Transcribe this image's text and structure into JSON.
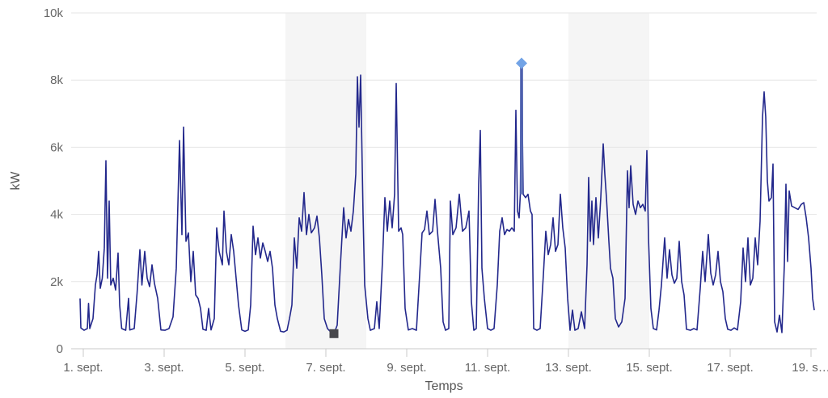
{
  "chart_data": {
    "type": "line",
    "title": "",
    "xlabel": "Temps",
    "ylabel": "kW",
    "x_unit": "September date (day + fraction of day)",
    "y_unit": "kW",
    "xlim": [
      0.7,
      19.14
    ],
    "ylim": [
      0,
      10000
    ],
    "grid": true,
    "legend": false,
    "x_ticks": [
      {
        "day": 1,
        "label": "1. sept."
      },
      {
        "day": 3,
        "label": "3. sept."
      },
      {
        "day": 5,
        "label": "5. sept."
      },
      {
        "day": 7,
        "label": "7. sept."
      },
      {
        "day": 9,
        "label": "9. sept."
      },
      {
        "day": 11,
        "label": "11. sept."
      },
      {
        "day": 13,
        "label": "13. sept."
      },
      {
        "day": 15,
        "label": "15. sept."
      },
      {
        "day": 17,
        "label": "17. sept."
      },
      {
        "day": 19,
        "label": "19. s…"
      }
    ],
    "y_ticks": [
      {
        "value": 0,
        "label": "0"
      },
      {
        "value": 2000,
        "label": "2k"
      },
      {
        "value": 4000,
        "label": "4k"
      },
      {
        "value": 6000,
        "label": "6k"
      },
      {
        "value": 8000,
        "label": "8k"
      },
      {
        "value": 10000,
        "label": "10k"
      }
    ],
    "plot_bands": [
      {
        "from": 6,
        "to": 8
      },
      {
        "from": 13,
        "to": 15
      }
    ],
    "colors": {
      "line": "#23288c",
      "band": "#f5f5f5",
      "grid": "#e6e6e6",
      "axis": "#c9c9c9",
      "highlight": "#5569b3"
    },
    "max_point": {
      "x": 11.84,
      "y": 8500,
      "marker": "diamond",
      "color": "#72a3e6",
      "highlight_to": 4600
    },
    "min_point": {
      "x": 7.2,
      "y": 450,
      "marker": "square",
      "color": "#47474b"
    },
    "series": [
      {
        "color": "#23288c",
        "points": [
          [
            0.92,
            1500
          ],
          [
            0.94,
            620
          ],
          [
            1.02,
            550
          ],
          [
            1.1,
            600
          ],
          [
            1.13,
            1350
          ],
          [
            1.16,
            600
          ],
          [
            1.24,
            900
          ],
          [
            1.3,
            1900
          ],
          [
            1.34,
            2200
          ],
          [
            1.38,
            2900
          ],
          [
            1.42,
            1800
          ],
          [
            1.47,
            2100
          ],
          [
            1.52,
            3000
          ],
          [
            1.56,
            5600
          ],
          [
            1.6,
            2100
          ],
          [
            1.64,
            4400
          ],
          [
            1.68,
            1900
          ],
          [
            1.74,
            2100
          ],
          [
            1.8,
            1750
          ],
          [
            1.86,
            2850
          ],
          [
            1.9,
            1300
          ],
          [
            1.95,
            600
          ],
          [
            2.05,
            550
          ],
          [
            2.12,
            1500
          ],
          [
            2.15,
            560
          ],
          [
            2.26,
            600
          ],
          [
            2.33,
            1650
          ],
          [
            2.4,
            2950
          ],
          [
            2.45,
            1900
          ],
          [
            2.52,
            2900
          ],
          [
            2.58,
            2100
          ],
          [
            2.64,
            1850
          ],
          [
            2.7,
            2500
          ],
          [
            2.76,
            1950
          ],
          [
            2.84,
            1500
          ],
          [
            2.92,
            560
          ],
          [
            3.02,
            550
          ],
          [
            3.12,
            600
          ],
          [
            3.22,
            950
          ],
          [
            3.3,
            2400
          ],
          [
            3.38,
            6200
          ],
          [
            3.44,
            3400
          ],
          [
            3.48,
            6600
          ],
          [
            3.54,
            3200
          ],
          [
            3.6,
            3450
          ],
          [
            3.66,
            2000
          ],
          [
            3.72,
            2900
          ],
          [
            3.78,
            1600
          ],
          [
            3.84,
            1500
          ],
          [
            3.9,
            1200
          ],
          [
            3.96,
            580
          ],
          [
            4.04,
            550
          ],
          [
            4.1,
            1200
          ],
          [
            4.16,
            560
          ],
          [
            4.24,
            900
          ],
          [
            4.3,
            3600
          ],
          [
            4.36,
            2900
          ],
          [
            4.44,
            2500
          ],
          [
            4.48,
            4100
          ],
          [
            4.54,
            2900
          ],
          [
            4.6,
            2500
          ],
          [
            4.66,
            3400
          ],
          [
            4.72,
            2900
          ],
          [
            4.78,
            2100
          ],
          [
            4.84,
            1300
          ],
          [
            4.92,
            560
          ],
          [
            5.0,
            520
          ],
          [
            5.08,
            560
          ],
          [
            5.14,
            1300
          ],
          [
            5.2,
            3650
          ],
          [
            5.26,
            2800
          ],
          [
            5.32,
            3300
          ],
          [
            5.38,
            2700
          ],
          [
            5.44,
            3150
          ],
          [
            5.5,
            2900
          ],
          [
            5.56,
            2600
          ],
          [
            5.62,
            2900
          ],
          [
            5.68,
            2400
          ],
          [
            5.74,
            1300
          ],
          [
            5.8,
            900
          ],
          [
            5.88,
            520
          ],
          [
            5.96,
            500
          ],
          [
            6.04,
            550
          ],
          [
            6.1,
            900
          ],
          [
            6.16,
            1300
          ],
          [
            6.22,
            3300
          ],
          [
            6.28,
            2400
          ],
          [
            6.34,
            3900
          ],
          [
            6.4,
            3500
          ],
          [
            6.46,
            4650
          ],
          [
            6.52,
            3400
          ],
          [
            6.58,
            4000
          ],
          [
            6.64,
            3450
          ],
          [
            6.72,
            3600
          ],
          [
            6.78,
            3950
          ],
          [
            6.84,
            3300
          ],
          [
            6.9,
            2200
          ],
          [
            6.96,
            900
          ],
          [
            7.04,
            600
          ],
          [
            7.12,
            500
          ],
          [
            7.2,
            450
          ],
          [
            7.28,
            700
          ],
          [
            7.36,
            2500
          ],
          [
            7.44,
            4200
          ],
          [
            7.5,
            3300
          ],
          [
            7.56,
            3850
          ],
          [
            7.62,
            3500
          ],
          [
            7.68,
            4100
          ],
          [
            7.74,
            5200
          ],
          [
            7.78,
            8100
          ],
          [
            7.82,
            6600
          ],
          [
            7.86,
            8150
          ],
          [
            7.92,
            4000
          ],
          [
            7.96,
            1900
          ],
          [
            8.04,
            900
          ],
          [
            8.1,
            550
          ],
          [
            8.2,
            600
          ],
          [
            8.26,
            1400
          ],
          [
            8.32,
            600
          ],
          [
            8.4,
            2600
          ],
          [
            8.46,
            4500
          ],
          [
            8.52,
            3500
          ],
          [
            8.58,
            4400
          ],
          [
            8.64,
            3600
          ],
          [
            8.7,
            4600
          ],
          [
            8.74,
            7900
          ],
          [
            8.8,
            3500
          ],
          [
            8.86,
            3600
          ],
          [
            8.9,
            3400
          ],
          [
            8.96,
            1200
          ],
          [
            9.04,
            560
          ],
          [
            9.14,
            600
          ],
          [
            9.24,
            550
          ],
          [
            9.32,
            2200
          ],
          [
            9.38,
            3450
          ],
          [
            9.44,
            3550
          ],
          [
            9.5,
            4100
          ],
          [
            9.56,
            3400
          ],
          [
            9.64,
            3500
          ],
          [
            9.7,
            4450
          ],
          [
            9.76,
            3500
          ],
          [
            9.84,
            2400
          ],
          [
            9.9,
            800
          ],
          [
            9.96,
            550
          ],
          [
            10.04,
            600
          ],
          [
            10.08,
            4400
          ],
          [
            10.14,
            3400
          ],
          [
            10.22,
            3600
          ],
          [
            10.3,
            4600
          ],
          [
            10.38,
            3500
          ],
          [
            10.46,
            3600
          ],
          [
            10.54,
            4100
          ],
          [
            10.6,
            1400
          ],
          [
            10.66,
            550
          ],
          [
            10.72,
            600
          ],
          [
            10.78,
            4900
          ],
          [
            10.82,
            6500
          ],
          [
            10.86,
            2400
          ],
          [
            10.92,
            1500
          ],
          [
            11.0,
            600
          ],
          [
            11.08,
            550
          ],
          [
            11.16,
            600
          ],
          [
            11.24,
            1900
          ],
          [
            11.3,
            3500
          ],
          [
            11.36,
            3900
          ],
          [
            11.42,
            3400
          ],
          [
            11.48,
            3550
          ],
          [
            11.54,
            3500
          ],
          [
            11.6,
            3600
          ],
          [
            11.66,
            3500
          ],
          [
            11.7,
            7100
          ],
          [
            11.74,
            4100
          ],
          [
            11.78,
            3900
          ],
          [
            11.81,
            4600
          ],
          [
            11.84,
            8500
          ],
          [
            11.88,
            4600
          ],
          [
            11.94,
            4500
          ],
          [
            12.0,
            4600
          ],
          [
            12.06,
            4100
          ],
          [
            12.1,
            4000
          ],
          [
            12.14,
            600
          ],
          [
            12.22,
            550
          ],
          [
            12.3,
            600
          ],
          [
            12.38,
            2200
          ],
          [
            12.44,
            3500
          ],
          [
            12.5,
            2800
          ],
          [
            12.56,
            3100
          ],
          [
            12.62,
            3900
          ],
          [
            12.68,
            2900
          ],
          [
            12.74,
            3100
          ],
          [
            12.8,
            4600
          ],
          [
            12.86,
            3600
          ],
          [
            12.92,
            3000
          ],
          [
            12.98,
            1500
          ],
          [
            13.04,
            550
          ],
          [
            13.1,
            1150
          ],
          [
            13.16,
            550
          ],
          [
            13.24,
            600
          ],
          [
            13.32,
            1100
          ],
          [
            13.4,
            600
          ],
          [
            13.46,
            2500
          ],
          [
            13.5,
            5100
          ],
          [
            13.54,
            3200
          ],
          [
            13.58,
            4400
          ],
          [
            13.62,
            3100
          ],
          [
            13.68,
            4500
          ],
          [
            13.74,
            3300
          ],
          [
            13.8,
            4500
          ],
          [
            13.86,
            6100
          ],
          [
            13.9,
            5200
          ],
          [
            13.94,
            4500
          ],
          [
            14.0,
            3200
          ],
          [
            14.04,
            2400
          ],
          [
            14.1,
            2100
          ],
          [
            14.16,
            900
          ],
          [
            14.24,
            650
          ],
          [
            14.32,
            800
          ],
          [
            14.4,
            1500
          ],
          [
            14.46,
            5300
          ],
          [
            14.5,
            4200
          ],
          [
            14.54,
            5450
          ],
          [
            14.6,
            4300
          ],
          [
            14.66,
            4000
          ],
          [
            14.72,
            4400
          ],
          [
            14.78,
            4200
          ],
          [
            14.84,
            4300
          ],
          [
            14.9,
            4100
          ],
          [
            14.94,
            5900
          ],
          [
            14.98,
            3300
          ],
          [
            15.04,
            1200
          ],
          [
            15.1,
            600
          ],
          [
            15.18,
            560
          ],
          [
            15.24,
            1150
          ],
          [
            15.3,
            1900
          ],
          [
            15.38,
            3300
          ],
          [
            15.44,
            2100
          ],
          [
            15.5,
            2950
          ],
          [
            15.56,
            2200
          ],
          [
            15.62,
            1950
          ],
          [
            15.68,
            2100
          ],
          [
            15.74,
            3200
          ],
          [
            15.8,
            2000
          ],
          [
            15.86,
            1600
          ],
          [
            15.92,
            580
          ],
          [
            16.02,
            550
          ],
          [
            16.1,
            600
          ],
          [
            16.18,
            560
          ],
          [
            16.26,
            1800
          ],
          [
            16.32,
            2900
          ],
          [
            16.38,
            2000
          ],
          [
            16.46,
            3400
          ],
          [
            16.52,
            2250
          ],
          [
            16.58,
            1900
          ],
          [
            16.64,
            2200
          ],
          [
            16.7,
            2900
          ],
          [
            16.76,
            2000
          ],
          [
            16.82,
            1700
          ],
          [
            16.88,
            900
          ],
          [
            16.94,
            580
          ],
          [
            17.02,
            550
          ],
          [
            17.1,
            620
          ],
          [
            17.18,
            560
          ],
          [
            17.26,
            1400
          ],
          [
            17.32,
            3000
          ],
          [
            17.38,
            2000
          ],
          [
            17.44,
            3300
          ],
          [
            17.5,
            1900
          ],
          [
            17.56,
            2100
          ],
          [
            17.62,
            3300
          ],
          [
            17.68,
            2500
          ],
          [
            17.74,
            3800
          ],
          [
            17.8,
            6900
          ],
          [
            17.84,
            7650
          ],
          [
            17.88,
            6900
          ],
          [
            17.92,
            5000
          ],
          [
            17.96,
            4400
          ],
          [
            18.02,
            4500
          ],
          [
            18.06,
            5500
          ],
          [
            18.1,
            800
          ],
          [
            18.16,
            500
          ],
          [
            18.22,
            1000
          ],
          [
            18.28,
            480
          ],
          [
            18.34,
            2500
          ],
          [
            18.38,
            4900
          ],
          [
            18.42,
            2600
          ],
          [
            18.46,
            4700
          ],
          [
            18.52,
            4250
          ],
          [
            18.6,
            4200
          ],
          [
            18.68,
            4150
          ],
          [
            18.76,
            4300
          ],
          [
            18.82,
            4350
          ],
          [
            18.88,
            3900
          ],
          [
            18.94,
            3300
          ],
          [
            19.0,
            2400
          ],
          [
            19.04,
            1500
          ],
          [
            19.08,
            1150
          ]
        ]
      }
    ]
  }
}
